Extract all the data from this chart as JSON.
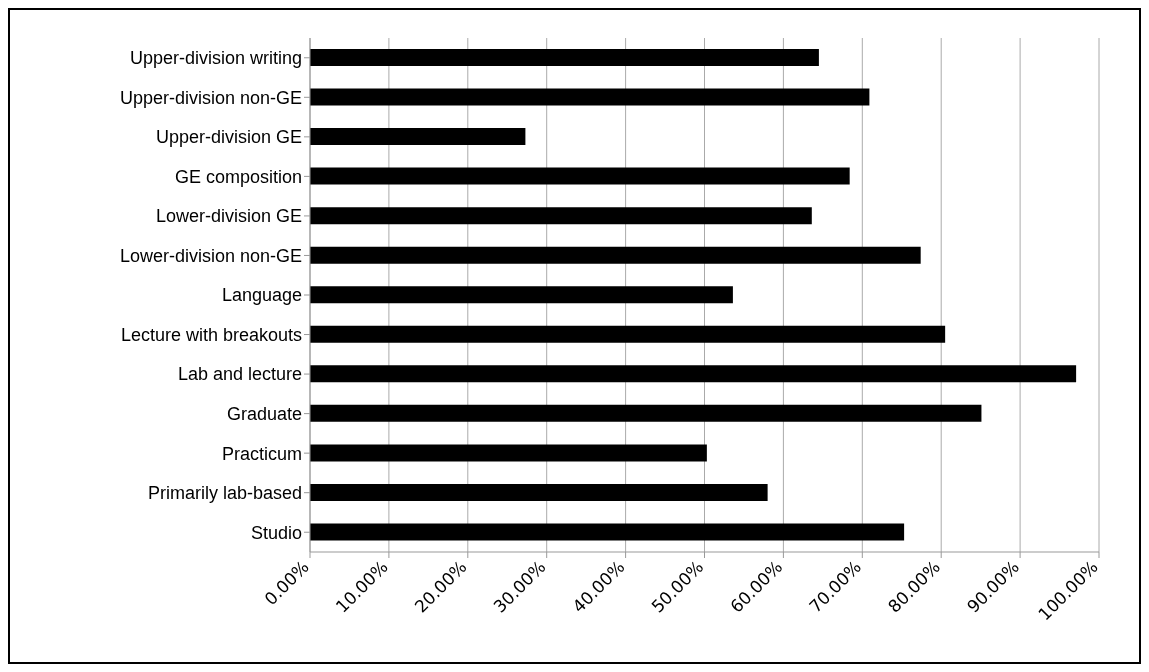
{
  "chart_data": {
    "type": "bar",
    "orientation": "horizontal",
    "categories": [
      "Upper-division writing",
      "Upper-division non-GE",
      "Upper-division GE",
      "GE composition",
      "Lower-division GE",
      "Lower-division non-GE",
      "Language",
      "Lecture with breakouts",
      "Lab and lecture",
      "Graduate",
      "Practicum",
      "Primarily lab-based",
      "Studio"
    ],
    "values": [
      64.5,
      70.9,
      27.3,
      68.4,
      63.6,
      77.4,
      53.6,
      80.5,
      97.1,
      85.1,
      50.3,
      58.0,
      75.3
    ],
    "color": "#000000",
    "xlim": [
      0,
      100
    ],
    "xticks": [
      {
        "value": 0,
        "label": "0.00%"
      },
      {
        "value": 10,
        "label": "10.00%"
      },
      {
        "value": 20,
        "label": "20.00%"
      },
      {
        "value": 30,
        "label": "30.00%"
      },
      {
        "value": 40,
        "label": "40.00%"
      },
      {
        "value": 50,
        "label": "50.00%"
      },
      {
        "value": 60,
        "label": "60.00%"
      },
      {
        "value": 70,
        "label": "70.00%"
      },
      {
        "value": 80,
        "label": "80.00%"
      },
      {
        "value": 90,
        "label": "90.00%"
      },
      {
        "value": 100,
        "label": "100.00%"
      }
    ],
    "grid": "x"
  }
}
